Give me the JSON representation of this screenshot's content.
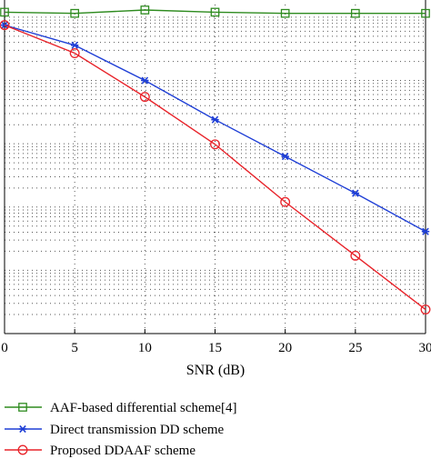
{
  "chart_data": {
    "type": "line",
    "xlabel": "SNR (dB)",
    "ylabel": "",
    "title": "",
    "x": [
      0,
      5,
      10,
      15,
      20,
      25,
      30
    ],
    "xlim": [
      0,
      30
    ],
    "ylim_log10": [
      -5,
      0.2
    ],
    "y_scale": "log",
    "grid": true,
    "legend_position": "bottom",
    "series": [
      {
        "name": "AAF-based differential scheme[4]",
        "color": "#2e8b1f",
        "marker": "square",
        "values": [
          1.2,
          1.15,
          1.3,
          1.2,
          1.15,
          1.15,
          1.15
        ]
      },
      {
        "name": "Direct transmission DD scheme",
        "color": "#1f3fd6",
        "marker": "star",
        "values": [
          0.75,
          0.36,
          0.1,
          0.024,
          0.0063,
          0.00165,
          0.00041
        ]
      },
      {
        "name": "Proposed DDAAF scheme",
        "color": "#e8232a",
        "marker": "circle",
        "values": [
          0.75,
          0.27,
          0.055,
          0.0098,
          0.0012,
          0.00017,
          2.4e-05
        ]
      }
    ]
  }
}
